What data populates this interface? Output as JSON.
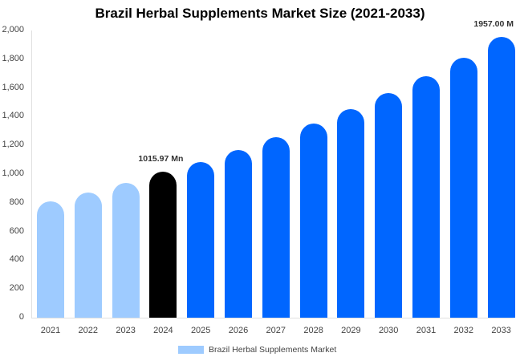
{
  "chart_data": {
    "type": "bar",
    "title": "Brazil Herbal Supplements Market Size (2021-2033)",
    "xlabel": "",
    "ylabel": "",
    "ylim": [
      0,
      2000
    ],
    "yticks": [
      "0",
      "200",
      "400",
      "600",
      "800",
      "1,000",
      "1,200",
      "1,400",
      "1,600",
      "1,800",
      "2,000"
    ],
    "categories": [
      "2021",
      "2022",
      "2023",
      "2024",
      "2025",
      "2026",
      "2027",
      "2028",
      "2029",
      "2030",
      "2031",
      "2032",
      "2033"
    ],
    "series": [
      {
        "name": "Brazil Herbal Supplements Market",
        "values": [
          810,
          871,
          939,
          1015.97,
          1084,
          1168,
          1257,
          1352,
          1453,
          1564,
          1682,
          1810,
          1957
        ]
      }
    ],
    "bar_colors": [
      "#9ecbff",
      "#9ecbff",
      "#9ecbff",
      "#000000",
      "#0066ff",
      "#0066ff",
      "#0066ff",
      "#0066ff",
      "#0066ff",
      "#0066ff",
      "#0066ff",
      "#0066ff",
      "#0066ff"
    ],
    "annotations": [
      {
        "category": "2024",
        "text": "1015.97 Mn"
      },
      {
        "category": "2033",
        "text": "1957.00 M"
      }
    ],
    "legend": {
      "position": "bottom",
      "label": "Brazil Herbal Supplements Market",
      "color": "#9ecbff"
    },
    "grid": false
  }
}
